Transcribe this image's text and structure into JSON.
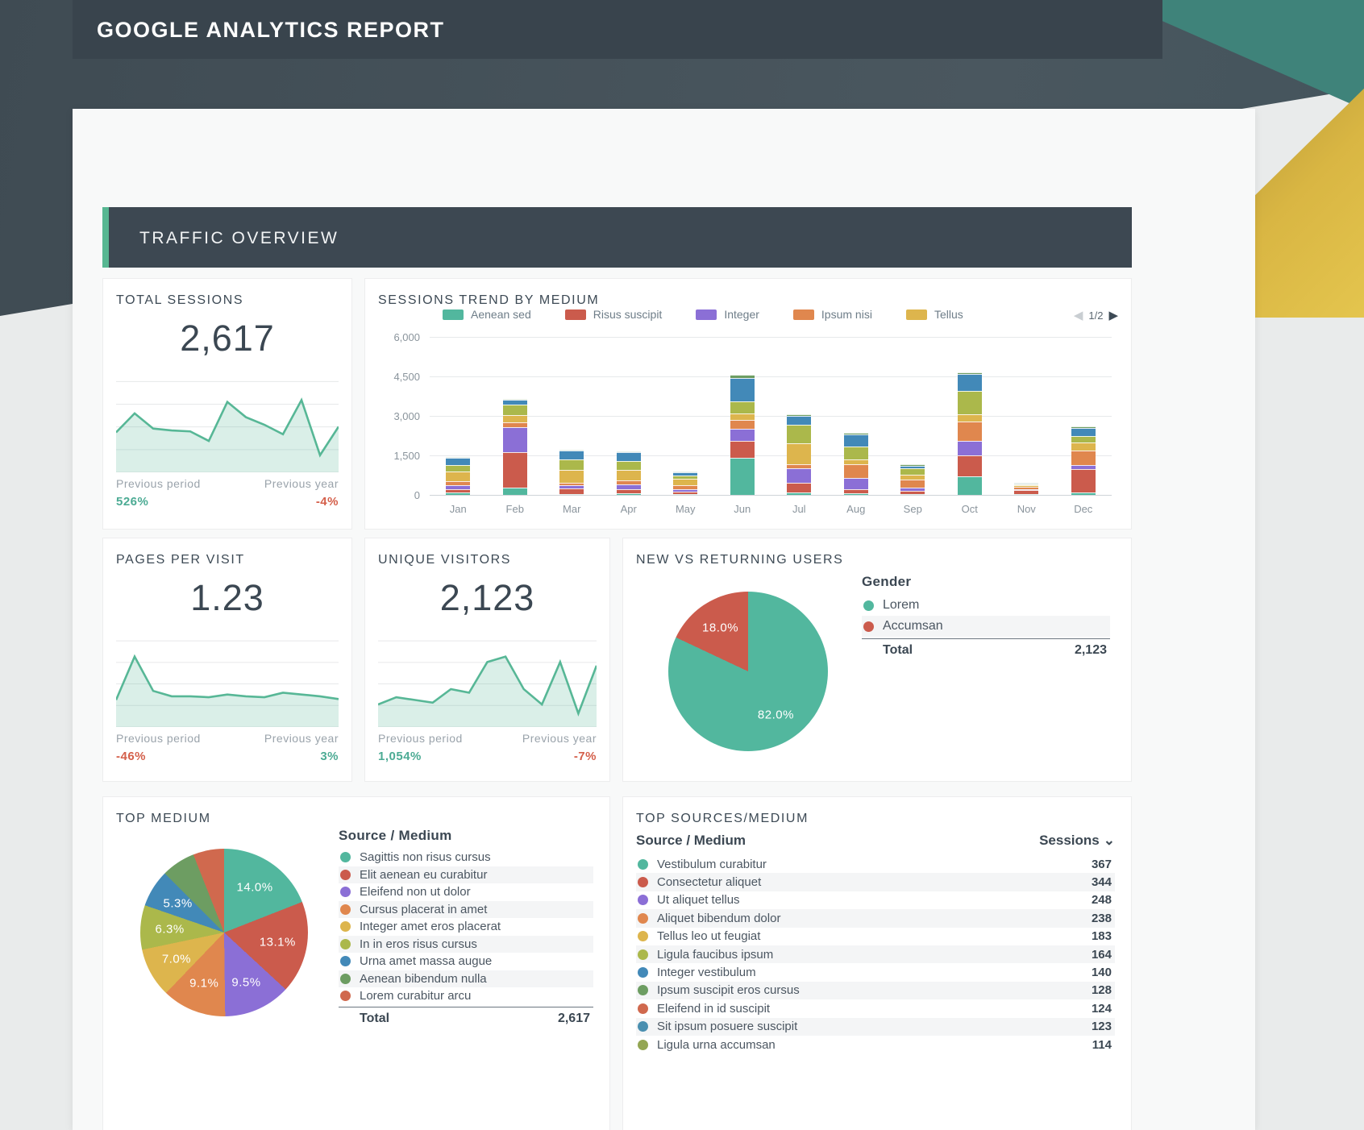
{
  "palette": {
    "teal": "#52b79e",
    "red": "#cb5b4c",
    "purple": "#8b6fd6",
    "orange": "#e0874e",
    "yellow": "#ddb54d",
    "olive": "#abb84b",
    "blue": "#4289b8",
    "green": "#6d9d62",
    "hatch_red": "#d0694e",
    "hatch_blue": "#4a8fb0",
    "hatch_olive": "#93a653",
    "accent_green": "#57b792",
    "pos_text": "#4cab94",
    "neg_text": "#d45f4a",
    "header_bg": "#39444d",
    "banner_bg": "#3d4852"
  },
  "header": {
    "title": "GOOGLE ANALYTICS REPORT"
  },
  "section_banner": {
    "title": "TRAFFIC OVERVIEW"
  },
  "cards": {
    "total_sessions": {
      "title": "TOTAL SESSIONS",
      "value": "2,617",
      "prev_period_label": "Previous period",
      "prev_year_label": "Previous year",
      "prev_period_value": "526%",
      "prev_period_dir": "up",
      "prev_year_value": "-4%",
      "prev_year_dir": "down"
    },
    "sessions_trend": {
      "title": "SESSIONS TREND BY MEDIUM",
      "pagination": "1/2",
      "pager_prev": "◀",
      "pager_next": "▶"
    },
    "pages_per_visit": {
      "title": "PAGES PER VISIT",
      "value": "1.23",
      "prev_period_label": "Previous period",
      "prev_year_label": "Previous year",
      "prev_period_value": "-46%",
      "prev_period_dir": "down",
      "prev_year_value": "3%",
      "prev_year_dir": "up"
    },
    "unique_visitors": {
      "title": "UNIQUE VISITORS",
      "value": "2,123",
      "prev_period_label": "Previous period",
      "prev_year_label": "Previous year",
      "prev_period_value": "1,054%",
      "prev_period_dir": "up",
      "prev_year_value": "-7%",
      "prev_year_dir": "down"
    },
    "new_vs_returning": {
      "title": "NEW VS RETURNING USERS",
      "legend_title": "Gender",
      "total_label": "Total",
      "total_value": "2,123"
    },
    "top_medium": {
      "title": "TOP MEDIUM",
      "legend_title": "Source / Medium",
      "total_label": "Total",
      "total_value": "2,617"
    },
    "top_sources": {
      "title": "TOP SOURCES/MEDIUM",
      "col_source": "Source / Medium",
      "col_sessions": "Sessions",
      "sort_icon": "⌄"
    }
  },
  "chart_data": [
    {
      "id": "total_sessions_spark",
      "type": "area",
      "values": [
        42,
        62,
        46,
        44,
        43,
        33,
        74,
        58,
        50,
        40,
        76,
        18,
        48
      ]
    },
    {
      "id": "sessions_trend",
      "type": "bar",
      "stacked": true,
      "title": "SESSIONS TREND BY MEDIUM",
      "categories": [
        "Jan",
        "Feb",
        "Mar",
        "Apr",
        "May",
        "Jun",
        "Jul",
        "Aug",
        "Sep",
        "Oct",
        "Nov",
        "Dec"
      ],
      "ylim": [
        0,
        6000
      ],
      "yticks": [
        0,
        1500,
        3000,
        4500,
        6000
      ],
      "legend_page": "1/2",
      "legend": [
        {
          "label": "Aenean sed",
          "color": "teal"
        },
        {
          "label": "Risus suscipit",
          "color": "red"
        },
        {
          "label": "Integer",
          "color": "purple"
        },
        {
          "label": "Ipsum nisi",
          "color": "orange"
        },
        {
          "label": "Tellus",
          "color": "yellow"
        }
      ],
      "series": [
        {
          "name": "Aenean sed",
          "color": "teal",
          "values": [
            80,
            280,
            40,
            60,
            30,
            1400,
            100,
            50,
            30,
            700,
            30,
            80
          ]
        },
        {
          "name": "Risus suscipit",
          "color": "red",
          "values": [
            120,
            1350,
            200,
            150,
            80,
            650,
            350,
            150,
            120,
            800,
            140,
            900
          ]
        },
        {
          "name": "Integer",
          "color": "purple",
          "values": [
            180,
            950,
            130,
            180,
            100,
            450,
            550,
            450,
            130,
            550,
            40,
            150
          ]
        },
        {
          "name": "Ipsum nisi",
          "color": "orange",
          "values": [
            150,
            180,
            100,
            170,
            160,
            350,
            150,
            500,
            300,
            750,
            90,
            550
          ]
        },
        {
          "name": "Tellus",
          "color": "yellow",
          "values": [
            370,
            280,
            480,
            380,
            240,
            250,
            800,
            200,
            180,
            250,
            60,
            300
          ]
        },
        {
          "name": "",
          "color": "olive",
          "values": [
            220,
            380,
            400,
            340,
            120,
            450,
            700,
            500,
            250,
            900,
            20,
            250
          ]
        },
        {
          "name": "",
          "color": "blue",
          "values": [
            300,
            180,
            320,
            340,
            140,
            900,
            350,
            450,
            100,
            650,
            15,
            320
          ]
        },
        {
          "name": "",
          "color": "green",
          "values": [
            30,
            50,
            30,
            30,
            30,
            100,
            50,
            50,
            40,
            50,
            5,
            50
          ]
        }
      ]
    },
    {
      "id": "pages_per_visit_spark",
      "type": "area",
      "values": [
        30,
        78,
        40,
        34,
        34,
        33,
        36,
        34,
        33,
        38,
        36,
        34,
        31
      ]
    },
    {
      "id": "unique_visitors_spark",
      "type": "area",
      "values": [
        25,
        33,
        30,
        27,
        42,
        38,
        72,
        78,
        42,
        25,
        72,
        15,
        68
      ]
    },
    {
      "id": "new_vs_returning_pie",
      "type": "pie",
      "title": "NEW VS RETURNING USERS",
      "slices": [
        {
          "label": "Lorem",
          "color": "teal",
          "weight": 82.0,
          "pct_label": "82.0%"
        },
        {
          "label": "Accumsan",
          "color": "red",
          "weight": 18.0,
          "pct_label": "18.0%"
        }
      ],
      "total": "2,123"
    },
    {
      "id": "top_medium_pie",
      "type": "pie",
      "title": "TOP MEDIUM",
      "slices": [
        {
          "label": "Sagittis non risus cursus",
          "color": "teal",
          "weight": 14.0,
          "pct_label": "14.0%"
        },
        {
          "label": "Elit aenean eu curabitur",
          "color": "red",
          "weight": 13.1,
          "pct_label": "13.1%"
        },
        {
          "label": "Eleifend non ut dolor",
          "color": "purple",
          "weight": 9.5,
          "pct_label": "9.5%"
        },
        {
          "label": "Cursus placerat in amet",
          "color": "orange",
          "weight": 9.1,
          "pct_label": "9.1%"
        },
        {
          "label": "Integer amet eros placerat",
          "color": "yellow",
          "weight": 7.0,
          "pct_label": "7.0%"
        },
        {
          "label": "In in eros risus cursus",
          "color": "olive",
          "weight": 6.3,
          "pct_label": "6.3%"
        },
        {
          "label": "Urna amet massa augue",
          "color": "blue",
          "weight": 5.3,
          "pct_label": "5.3%"
        },
        {
          "label": "Aenean bibendum nulla",
          "color": "green",
          "weight": 4.8,
          "pct_label": ""
        },
        {
          "label": "Lorem curabitur arcu",
          "color": "hatch_red",
          "weight": 4.4,
          "pct_label": ""
        }
      ],
      "total": "2,617"
    },
    {
      "id": "top_sources_table",
      "type": "table",
      "columns": [
        "Source / Medium",
        "Sessions"
      ],
      "rows": [
        {
          "label": "Vestibulum curabitur",
          "color": "teal",
          "sessions": "367"
        },
        {
          "label": "Consectetur aliquet",
          "color": "red",
          "sessions": "344"
        },
        {
          "label": "Ut aliquet tellus",
          "color": "purple",
          "sessions": "248"
        },
        {
          "label": "Aliquet bibendum dolor",
          "color": "orange",
          "sessions": "238"
        },
        {
          "label": "Tellus leo ut feugiat",
          "color": "yellow",
          "sessions": "183"
        },
        {
          "label": "Ligula faucibus ipsum",
          "color": "olive",
          "sessions": "164"
        },
        {
          "label": "Integer vestibulum",
          "color": "blue",
          "sessions": "140"
        },
        {
          "label": "Ipsum suscipit eros cursus",
          "color": "green",
          "sessions": "128"
        },
        {
          "label": "Eleifend in id suscipit",
          "color": "hatch_red",
          "sessions": "124"
        },
        {
          "label": "Sit ipsum posuere suscipit",
          "color": "hatch_blue",
          "sessions": "123"
        },
        {
          "label": "Ligula urna accumsan",
          "color": "hatch_olive",
          "sessions": "114"
        }
      ]
    }
  ]
}
